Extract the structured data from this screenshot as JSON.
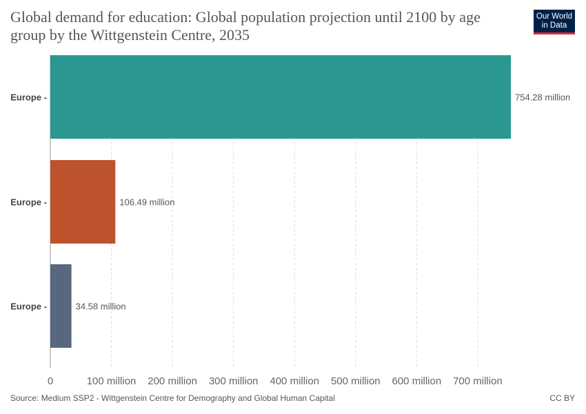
{
  "title": "Global demand for education: Global population projection until 2100 by age group by the Wittgenstein Centre, 2035",
  "logo": {
    "line1": "Our World",
    "line2": "in Data"
  },
  "source": "Source: Medium SSP2 - Wittgenstein Centre for Demography and Global Human Capital",
  "license": "CC BY",
  "chart_data": {
    "type": "bar",
    "orientation": "horizontal",
    "categories": [
      "Europe",
      "Europe",
      "Europe"
    ],
    "values": [
      754.28,
      106.49,
      34.58
    ],
    "value_labels": [
      "754.28 million",
      "106.49 million",
      "34.58 million"
    ],
    "colors": [
      "#2a9890",
      "#be522c",
      "#58677e"
    ],
    "x_ticks": [
      0,
      100,
      200,
      300,
      400,
      500,
      600,
      700
    ],
    "x_tick_labels": [
      "0",
      "100 million",
      "200 million",
      "300 million",
      "400 million",
      "500 million",
      "600 million",
      "700 million"
    ],
    "xlim": [
      0,
      754.28
    ],
    "grid": "vertical dashed"
  }
}
